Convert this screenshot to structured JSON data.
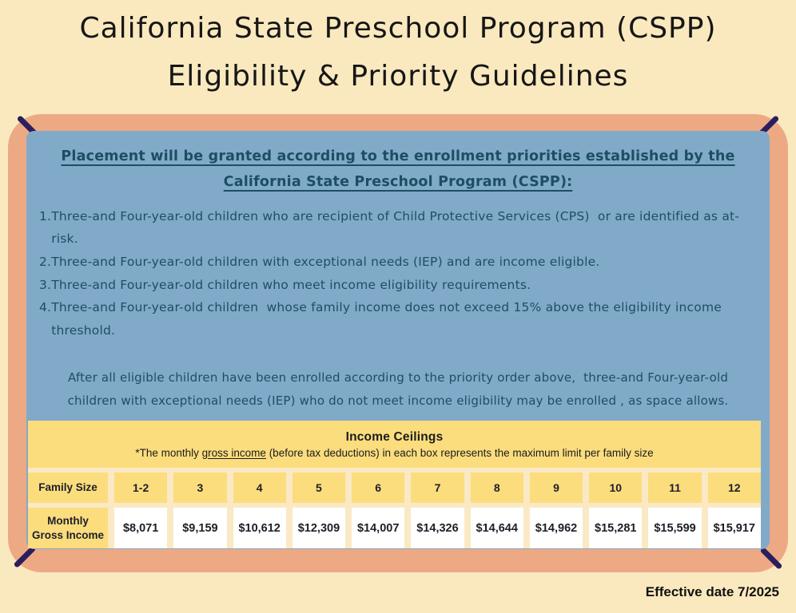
{
  "title": {
    "line1": "California State Preschool Program (CSPP)",
    "line2": "Eligibility & Priority Guidelines"
  },
  "panel": {
    "heading_line1": "Placement will be granted according to the enrollment priorities established by the",
    "heading_line2": "California State Preschool Program (CSPP):",
    "priorities": [
      {
        "number": "1.",
        "text": "Three-and Four-year-old children who are recipient of Child Protective Services (CPS)  or are identified as at-risk."
      },
      {
        "number": "2.",
        "text": "Three-and Four-year-old children with exceptional needs (IEP) and are income eligible."
      },
      {
        "number": "3.",
        "text": "Three-and Four-year-old children who meet income eligibility requirements."
      },
      {
        "number": "4.",
        "text": "Three-and Four-year-old children  whose family income does not exceed 15% above the eligibility income threshold."
      }
    ],
    "note": "After all eligible children have been enrolled according to the priority order above,  three-and Four-year-old children with exceptional needs (IEP) who do not meet income eligibility may be enrolled , as space allows."
  },
  "table": {
    "title": "Income Ceilings",
    "subtitle_prefix": "*The monthly ",
    "subtitle_underlined": "gross income",
    "subtitle_suffix": " (before tax deductions) in each box represents the maximum limit per family size",
    "row1_label": "Family Size",
    "row2_label": "Monthly Gross Income",
    "family_sizes": [
      "1-2",
      "3",
      "4",
      "5",
      "6",
      "7",
      "8",
      "9",
      "10",
      "11",
      "12"
    ],
    "incomes": [
      "$8,071",
      "$9,159",
      "$10,612",
      "$12,309",
      "$14,007",
      "$14,326",
      "$14,644",
      "$14,962",
      "$15,281",
      "$15,599",
      "$15,917"
    ]
  },
  "footer": {
    "effective_date": "Effective date 7/2025"
  },
  "colors": {
    "page_background": "#FAE9BE",
    "frame_orange": "#EDA984",
    "panel_blue": "#81AAC9",
    "panel_text": "#1D4E63",
    "table_yellow": "#FBDD7E",
    "corner_mark": "#2B1E5E"
  }
}
